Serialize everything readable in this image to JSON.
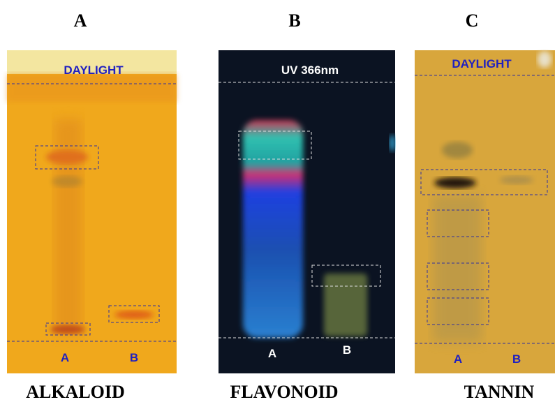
{
  "panels": [
    {
      "letter": "A",
      "plate_label": "DAYLIGHT",
      "lanes": [
        "A",
        "B"
      ],
      "caption": "ALKALOID"
    },
    {
      "letter": "B",
      "plate_label": "UV 366nm",
      "lanes": [
        "A",
        "B"
      ],
      "caption": "FLAVONOID"
    },
    {
      "letter": "C",
      "plate_label": "DAYLIGHT",
      "lanes": [
        "A",
        "B"
      ],
      "caption": "TANNIN"
    }
  ]
}
